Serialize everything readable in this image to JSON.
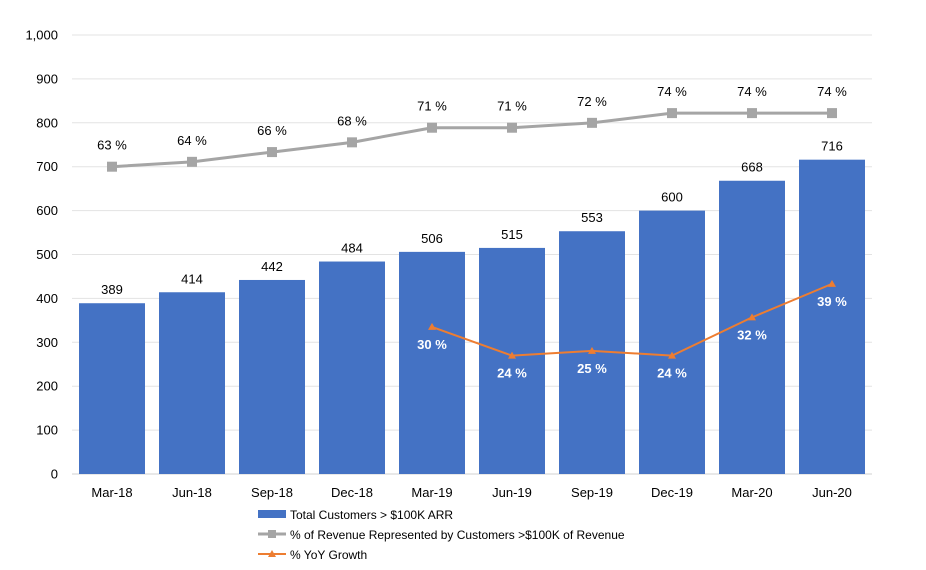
{
  "chart_data": {
    "type": "bar",
    "categories": [
      "Mar-18",
      "Jun-18",
      "Sep-18",
      "Dec-18",
      "Mar-19",
      "Jun-19",
      "Sep-19",
      "Dec-19",
      "Mar-20",
      "Jun-20"
    ],
    "ylim": [
      0,
      1000
    ],
    "yticks": [
      "0",
      "100",
      "200",
      "300",
      "400",
      "500",
      "600",
      "700",
      "800",
      "900",
      "1,000"
    ],
    "ytick_values": [
      0,
      100,
      200,
      300,
      400,
      500,
      600,
      700,
      800,
      900,
      1000
    ],
    "grid": true,
    "legend_position": "bottom",
    "series": [
      {
        "name": "Total Customers > $100K ARR",
        "type": "bar",
        "color": "#4472C4",
        "values": [
          389,
          414,
          442,
          484,
          506,
          515,
          553,
          600,
          668,
          716
        ],
        "labels": [
          "389",
          "414",
          "442",
          "484",
          "506",
          "515",
          "553",
          "600",
          "668",
          "716"
        ]
      },
      {
        "name": "% of Revenue Represented by Customers >$100K of Revenue",
        "type": "line",
        "marker": "square",
        "color": "#A5A5A5",
        "values": [
          63,
          64,
          66,
          68,
          71,
          71,
          72,
          74,
          74,
          74
        ],
        "labels": [
          "63 %",
          "64 %",
          "66 %",
          "68 %",
          "71 %",
          "71 %",
          "72 %",
          "74 %",
          "74 %",
          "74 %"
        ]
      },
      {
        "name": "% YoY Growth",
        "type": "line",
        "marker": "triangle",
        "color": "#ED7D31",
        "values": [
          null,
          null,
          null,
          null,
          30,
          24,
          25,
          24,
          32,
          39
        ],
        "labels": [
          "",
          "",
          "",
          "",
          "30 %",
          "24 %",
          "25 %",
          "24 %",
          "32 %",
          "39 %"
        ]
      }
    ]
  }
}
